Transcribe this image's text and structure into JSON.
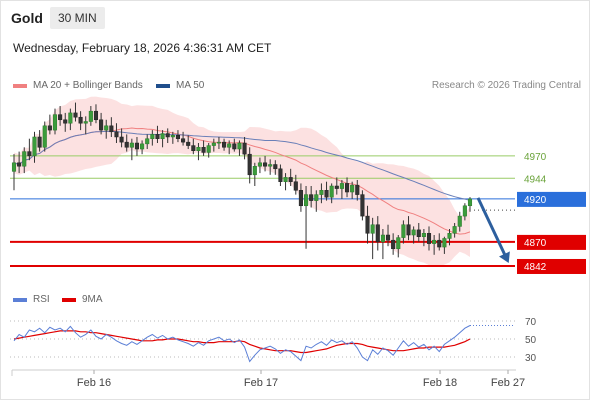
{
  "header": {
    "symbol": "Gold",
    "interval": "30 MIN",
    "timestamp": "Wednesday, February 18, 2026 4:36:31 AM CET",
    "credit": "Research © 2026 Trading Central"
  },
  "legend": {
    "ma20_label": "MA 20 + Bollinger Bands",
    "ma20_color": "#f08080",
    "ma50_label": "MA 50",
    "ma50_color": "#1f4e8c"
  },
  "rsi_legend": {
    "rsi_label": "RSI",
    "rsi_color": "#5b7fd6",
    "ma9_label": "9MA",
    "ma9_color": "#e00000"
  },
  "chart_data": {
    "type": "candlestick",
    "title": "",
    "x_ticks": [
      "Feb 16",
      "Feb 17",
      "Feb 18",
      "Feb 27"
    ],
    "y_range": [
      4835,
      5035
    ],
    "levels": [
      {
        "value": 4970,
        "label": "4970",
        "kind": "resistance",
        "color": "#99cc66"
      },
      {
        "value": 4944,
        "label": "4944",
        "kind": "resistance",
        "color": "#99cc66"
      },
      {
        "value": 4920,
        "label": "4920",
        "kind": "last",
        "color": "#2a6fdb"
      },
      {
        "value": 4870,
        "label": "4870",
        "kind": "support",
        "color": "#e00000"
      },
      {
        "value": 4842,
        "label": "4842",
        "kind": "support",
        "color": "#e00000"
      }
    ],
    "forecast": {
      "from": 4920,
      "to": 4845,
      "color": "#2d5f9e"
    },
    "candles": [
      [
        4952,
        4972,
        4930,
        4962
      ],
      [
        4962,
        4975,
        4950,
        4958
      ],
      [
        4958,
        4980,
        4950,
        4975
      ],
      [
        4975,
        4990,
        4965,
        4970
      ],
      [
        4970,
        4998,
        4962,
        4992
      ],
      [
        4992,
        5000,
        4975,
        4980
      ],
      [
        4980,
        5010,
        4975,
        5005
      ],
      [
        5005,
        5018,
        4995,
        5000
      ],
      [
        5000,
        5025,
        4995,
        5018
      ],
      [
        5018,
        5028,
        5005,
        5012
      ],
      [
        5012,
        5020,
        4998,
        5008
      ],
      [
        5008,
        5025,
        5000,
        5020
      ],
      [
        5020,
        5032,
        5010,
        5015
      ],
      [
        5015,
        5022,
        5000,
        5008
      ],
      [
        5008,
        5016,
        4995,
        5010
      ],
      [
        5010,
        5028,
        5005,
        5022
      ],
      [
        5022,
        5030,
        5008,
        5012
      ],
      [
        5012,
        5020,
        4995,
        5000
      ],
      [
        5000,
        5012,
        4990,
        5005
      ],
      [
        5005,
        5015,
        4992,
        4998
      ],
      [
        4998,
        5008,
        4985,
        4992
      ],
      [
        4992,
        5002,
        4980,
        4986
      ],
      [
        4986,
        4995,
        4975,
        4980
      ],
      [
        4980,
        4990,
        4965,
        4985
      ],
      [
        4985,
        4992,
        4970,
        4978
      ],
      [
        4978,
        4988,
        4972,
        4984
      ],
      [
        4984,
        4995,
        4978,
        4990
      ],
      [
        4990,
        5000,
        4982,
        4995
      ],
      [
        4995,
        5005,
        4985,
        4990
      ],
      [
        4990,
        5000,
        4980,
        4996
      ],
      [
        4996,
        5002,
        4985,
        4992
      ],
      [
        4992,
        4998,
        4984,
        4994
      ],
      [
        4994,
        5000,
        4986,
        4990
      ],
      [
        4990,
        4998,
        4982,
        4986
      ],
      [
        4986,
        4994,
        4978,
        4982
      ],
      [
        4982,
        4990,
        4972,
        4976
      ],
      [
        4976,
        4985,
        4965,
        4980
      ],
      [
        4980,
        4988,
        4970,
        4974
      ],
      [
        4974,
        4985,
        4968,
        4982
      ],
      [
        4982,
        4990,
        4975,
        4985
      ],
      [
        4985,
        4992,
        4978,
        4986
      ],
      [
        4986,
        4990,
        4976,
        4980
      ],
      [
        4980,
        4988,
        4972,
        4984
      ],
      [
        4984,
        4990,
        4975,
        4978
      ],
      [
        4978,
        4988,
        4970,
        4985
      ],
      [
        4985,
        4992,
        4966,
        4972
      ],
      [
        4972,
        4980,
        4938,
        4948
      ],
      [
        4948,
        4962,
        4935,
        4958
      ],
      [
        4958,
        4968,
        4950,
        4962
      ],
      [
        4962,
        4970,
        4952,
        4958
      ],
      [
        4958,
        4966,
        4948,
        4960
      ],
      [
        4960,
        4965,
        4948,
        4955
      ],
      [
        4955,
        4960,
        4935,
        4940
      ],
      [
        4940,
        4950,
        4930,
        4945
      ],
      [
        4945,
        4955,
        4935,
        4940
      ],
      [
        4940,
        4948,
        4925,
        4930
      ],
      [
        4930,
        4938,
        4905,
        4912
      ],
      [
        4912,
        4935,
        4862,
        4925
      ],
      [
        4925,
        4935,
        4910,
        4918
      ],
      [
        4918,
        4930,
        4905,
        4925
      ],
      [
        4925,
        4938,
        4915,
        4930
      ],
      [
        4930,
        4940,
        4918,
        4922
      ],
      [
        4922,
        4938,
        4915,
        4935
      ],
      [
        4935,
        4945,
        4925,
        4932
      ],
      [
        4932,
        4942,
        4920,
        4938
      ],
      [
        4938,
        4945,
        4922,
        4928
      ],
      [
        4928,
        4940,
        4920,
        4936
      ],
      [
        4936,
        4942,
        4918,
        4925
      ],
      [
        4925,
        4930,
        4895,
        4900
      ],
      [
        4900,
        4912,
        4868,
        4880
      ],
      [
        4880,
        4898,
        4850,
        4890
      ],
      [
        4890,
        4900,
        4860,
        4870
      ],
      [
        4870,
        4885,
        4850,
        4878
      ],
      [
        4878,
        4890,
        4865,
        4872
      ],
      [
        4872,
        4880,
        4855,
        4862
      ],
      [
        4862,
        4878,
        4852,
        4875
      ],
      [
        4875,
        4895,
        4868,
        4890
      ],
      [
        4890,
        4900,
        4872,
        4878
      ],
      [
        4878,
        4888,
        4868,
        4884
      ],
      [
        4884,
        4892,
        4870,
        4876
      ],
      [
        4876,
        4885,
        4865,
        4880
      ],
      [
        4880,
        4888,
        4860,
        4868
      ],
      [
        4868,
        4878,
        4855,
        4872
      ],
      [
        4872,
        4880,
        4860,
        4864
      ],
      [
        4864,
        4876,
        4856,
        4874
      ],
      [
        4874,
        4885,
        4866,
        4880
      ],
      [
        4880,
        4892,
        4875,
        4888
      ],
      [
        4888,
        4905,
        4882,
        4900
      ],
      [
        4900,
        4915,
        4895,
        4912
      ],
      [
        4912,
        4922,
        4905,
        4920
      ]
    ],
    "indicators": {
      "rsi_axis_ticks": [
        70,
        50,
        30
      ],
      "rsi": [
        48,
        55,
        52,
        60,
        58,
        62,
        57,
        63,
        60,
        62,
        58,
        64,
        57,
        52,
        55,
        60,
        53,
        50,
        55,
        52,
        48,
        45,
        43,
        47,
        44,
        48,
        52,
        55,
        51,
        54,
        50,
        52,
        49,
        47,
        45,
        42,
        46,
        43,
        48,
        50,
        52,
        48,
        50,
        46,
        49,
        41,
        25,
        32,
        38,
        40,
        42,
        39,
        34,
        38,
        36,
        31,
        26,
        42,
        40,
        44,
        47,
        43,
        49,
        46,
        48,
        44,
        47,
        40,
        30,
        26,
        38,
        33,
        40,
        37,
        32,
        40,
        48,
        42,
        46,
        41,
        44,
        38,
        42,
        36,
        44,
        48,
        52,
        57,
        62,
        65
      ],
      "rsi_ma9": [
        50,
        51,
        52,
        53,
        54,
        55,
        56,
        57,
        58,
        59,
        59,
        59,
        59,
        58,
        58,
        57,
        57,
        56,
        55,
        54,
        53,
        52,
        51,
        50,
        49,
        48,
        48,
        48,
        49,
        49,
        50,
        50,
        50,
        49,
        48,
        47,
        47,
        46,
        46,
        46,
        47,
        47,
        47,
        47,
        48,
        47,
        44,
        42,
        40,
        39,
        38,
        37,
        37,
        37,
        37,
        36,
        35,
        35,
        36,
        37,
        38,
        39,
        41,
        43,
        44,
        45,
        45,
        45,
        44,
        42,
        41,
        40,
        39,
        38,
        37,
        37,
        37,
        38,
        39,
        40,
        40,
        41,
        41,
        41,
        41,
        42,
        43,
        45,
        47,
        50
      ]
    }
  }
}
